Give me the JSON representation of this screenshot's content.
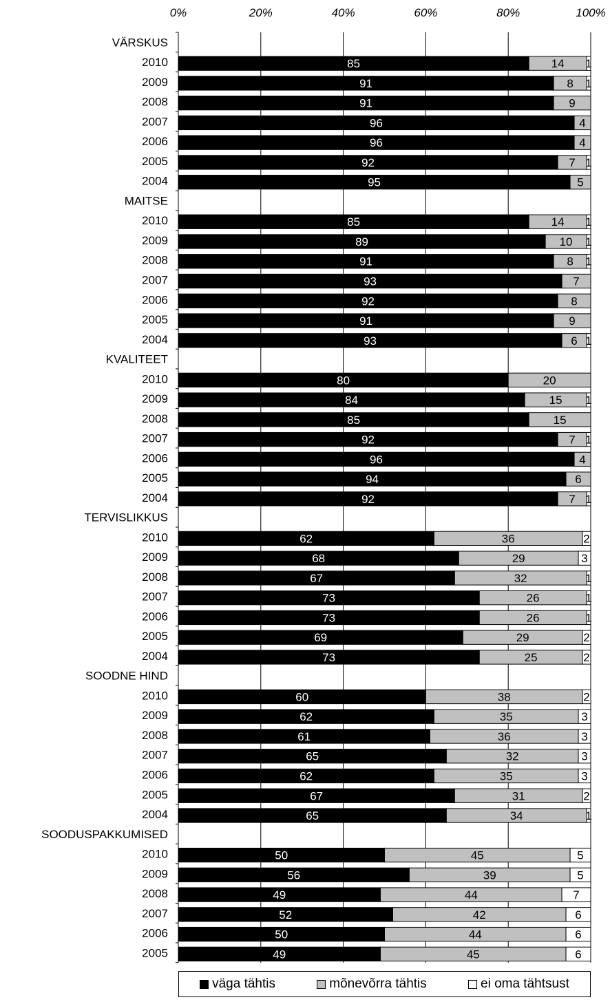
{
  "chart_data": {
    "type": "bar",
    "orientation": "horizontal",
    "stacked": "percent",
    "xlim": [
      0,
      100
    ],
    "x_ticks": [
      "0%",
      "20%",
      "40%",
      "60%",
      "80%",
      "100%"
    ],
    "grid": "vertical",
    "legend_placement": "bottom",
    "series": [
      {
        "name": "väga tähtis",
        "color": "#000000"
      },
      {
        "name": "mõnevõrra tähtis",
        "color": "#c0c0c0"
      },
      {
        "name": "ei oma tähtsust",
        "color": "#ffffff"
      }
    ],
    "groups": [
      {
        "label": "VÄRSKUS",
        "rows": [
          {
            "year": "2010",
            "values": [
              85,
              14,
              1
            ]
          },
          {
            "year": "2009",
            "values": [
              91,
              8,
              1
            ]
          },
          {
            "year": "2008",
            "values": [
              91,
              9,
              0
            ]
          },
          {
            "year": "2007",
            "values": [
              96,
              4,
              0
            ]
          },
          {
            "year": "2006",
            "values": [
              96,
              4,
              0
            ]
          },
          {
            "year": "2005",
            "values": [
              92,
              7,
              1
            ]
          },
          {
            "year": "2004",
            "values": [
              95,
              5,
              0
            ]
          }
        ]
      },
      {
        "label": "MAITSE",
        "rows": [
          {
            "year": "2010",
            "values": [
              85,
              14,
              1
            ]
          },
          {
            "year": "2009",
            "values": [
              89,
              10,
              1
            ]
          },
          {
            "year": "2008",
            "values": [
              91,
              8,
              1
            ]
          },
          {
            "year": "2007",
            "values": [
              93,
              7,
              0
            ]
          },
          {
            "year": "2006",
            "values": [
              92,
              8,
              0
            ]
          },
          {
            "year": "2005",
            "values": [
              91,
              9,
              0
            ]
          },
          {
            "year": "2004",
            "values": [
              93,
              6,
              1
            ]
          }
        ]
      },
      {
        "label": "KVALITEET",
        "rows": [
          {
            "year": "2010",
            "values": [
              80,
              20,
              0
            ]
          },
          {
            "year": "2009",
            "values": [
              84,
              15,
              1
            ]
          },
          {
            "year": "2008",
            "values": [
              85,
              15,
              0
            ]
          },
          {
            "year": "2007",
            "values": [
              92,
              7,
              1
            ]
          },
          {
            "year": "2006",
            "values": [
              96,
              4,
              0
            ]
          },
          {
            "year": "2005",
            "values": [
              94,
              6,
              0
            ]
          },
          {
            "year": "2004",
            "values": [
              92,
              7,
              1
            ]
          }
        ]
      },
      {
        "label": "TERVISLIKKUS",
        "rows": [
          {
            "year": "2010",
            "values": [
              62,
              36,
              2
            ]
          },
          {
            "year": "2009",
            "values": [
              68,
              29,
              3
            ]
          },
          {
            "year": "2008",
            "values": [
              67,
              32,
              1
            ]
          },
          {
            "year": "2007",
            "values": [
              73,
              26,
              1
            ]
          },
          {
            "year": "2006",
            "values": [
              73,
              26,
              1
            ]
          },
          {
            "year": "2005",
            "values": [
              69,
              29,
              2
            ]
          },
          {
            "year": "2004",
            "values": [
              73,
              25,
              2
            ]
          }
        ]
      },
      {
        "label": "SOODNE HIND",
        "rows": [
          {
            "year": "2010",
            "values": [
              60,
              38,
              2
            ]
          },
          {
            "year": "2009",
            "values": [
              62,
              35,
              3
            ]
          },
          {
            "year": "2008",
            "values": [
              61,
              36,
              3
            ]
          },
          {
            "year": "2007",
            "values": [
              65,
              32,
              3
            ]
          },
          {
            "year": "2006",
            "values": [
              62,
              35,
              3
            ]
          },
          {
            "year": "2005",
            "values": [
              67,
              31,
              2
            ]
          },
          {
            "year": "2004",
            "values": [
              65,
              34,
              1
            ]
          }
        ]
      },
      {
        "label": "SOODUSPAKKUMISED",
        "rows": [
          {
            "year": "2010",
            "values": [
              50,
              45,
              5
            ]
          },
          {
            "year": "2009",
            "values": [
              56,
              39,
              5
            ]
          },
          {
            "year": "2008",
            "values": [
              49,
              44,
              7
            ]
          },
          {
            "year": "2007",
            "values": [
              52,
              42,
              6
            ]
          },
          {
            "year": "2006",
            "values": [
              50,
              44,
              6
            ]
          },
          {
            "year": "2005",
            "values": [
              49,
              45,
              6
            ]
          }
        ]
      }
    ]
  }
}
